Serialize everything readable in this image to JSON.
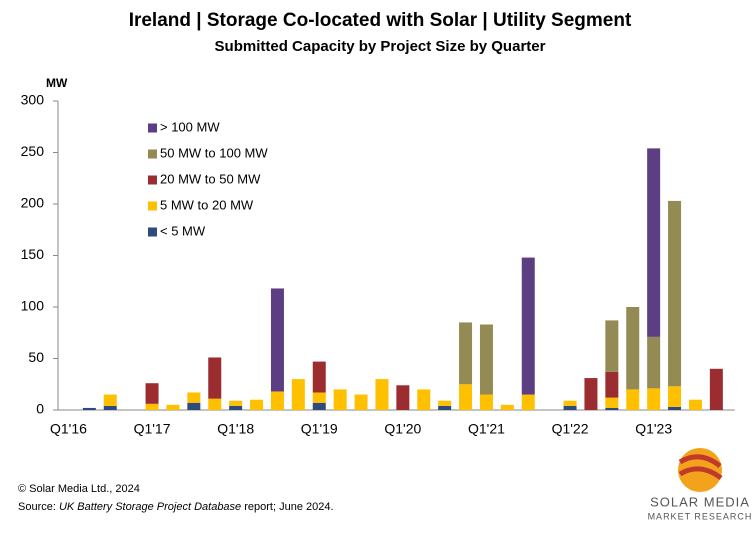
{
  "chart_data": {
    "type": "stacked_bar",
    "title": "Ireland | Storage Co-located with Solar | Utility Segment",
    "subtitle": "Submitted Capacity by Project Size by Quarter",
    "y_axis_label": "MW",
    "categories": [
      "Q1'16",
      null,
      null,
      null,
      "Q1'17",
      null,
      null,
      null,
      "Q1'18",
      null,
      null,
      null,
      "Q1'19",
      null,
      null,
      null,
      "Q1'20",
      null,
      null,
      null,
      "Q1'21",
      null,
      null,
      null,
      "Q1'22",
      null,
      null,
      null,
      "Q1'23",
      null,
      null,
      null
    ],
    "series": [
      {
        "name": "< 5 MW",
        "color": "#2f4b7c",
        "values": [
          0,
          2,
          4,
          0,
          0,
          0,
          7,
          0,
          4,
          0,
          0,
          0,
          7,
          0,
          0,
          0,
          0,
          0,
          4,
          0,
          0,
          0,
          0,
          0,
          4,
          0,
          2,
          0,
          0,
          3,
          0,
          0
        ]
      },
      {
        "name": "5 MW to 20 MW",
        "color": "#ffc000",
        "values": [
          0,
          0,
          11,
          0,
          6,
          5,
          10,
          11,
          5,
          10,
          18,
          30,
          10,
          20,
          15,
          30,
          0,
          20,
          5,
          25,
          15,
          5,
          15,
          0,
          5,
          0,
          10,
          20,
          21,
          20,
          10,
          0
        ]
      },
      {
        "name": "20 MW to 50 MW",
        "color": "#9b2d30",
        "values": [
          0,
          0,
          0,
          0,
          20,
          0,
          0,
          40,
          0,
          0,
          0,
          0,
          30,
          0,
          0,
          0,
          24,
          0,
          0,
          0,
          0,
          0,
          0,
          0,
          0,
          31,
          25,
          0,
          0,
          0,
          0,
          40
        ]
      },
      {
        "name": "50 MW to 100 MW",
        "color": "#948a54",
        "values": [
          0,
          0,
          0,
          0,
          0,
          0,
          0,
          0,
          0,
          0,
          0,
          0,
          0,
          0,
          0,
          0,
          0,
          0,
          0,
          60,
          68,
          0,
          0,
          0,
          0,
          0,
          50,
          80,
          50,
          180,
          0,
          0
        ]
      },
      {
        "name": "> 100 MW",
        "color": "#5c3f82",
        "values": [
          0,
          0,
          0,
          0,
          0,
          0,
          0,
          0,
          0,
          0,
          100,
          0,
          0,
          0,
          0,
          0,
          0,
          0,
          0,
          0,
          0,
          0,
          133,
          0,
          0,
          0,
          0,
          0,
          183,
          0,
          0,
          0
        ]
      }
    ],
    "ylim": [
      0,
      300
    ],
    "yticks": [
      0,
      50,
      100,
      150,
      200,
      250,
      300
    ],
    "copyright": "© Solar Media Ltd., 2024",
    "source": [
      "Source: ",
      "UK Battery Storage Project Database",
      " report; June 2024."
    ],
    "logo": [
      "SOLAR MEDIA",
      "MARKET RESEARCH"
    ]
  }
}
